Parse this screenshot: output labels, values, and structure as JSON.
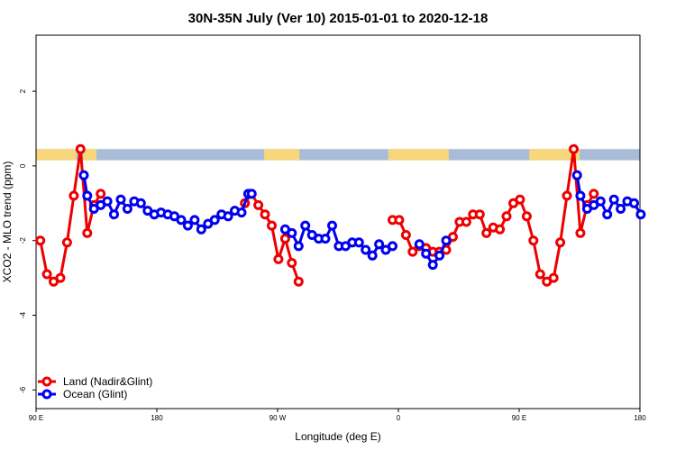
{
  "chart_data": {
    "type": "line",
    "title": "30N-35N July (Ver 10)   2015-01-01 to 2020-12-18",
    "xlabel": "Longitude (deg E)",
    "ylabel": "XCO2 - MLO trend (ppm)",
    "xlim": [
      90,
      450
    ],
    "ylim": [
      -6.5,
      3.5
    ],
    "x_ticks": [
      {
        "value": 90,
        "label": "90 E"
      },
      {
        "value": 162,
        "label": "180"
      },
      {
        "value": 234,
        "label": "90 W"
      },
      {
        "value": 306,
        "label": "0"
      },
      {
        "value": 378,
        "label": "90 E"
      },
      {
        "value": 450,
        "label": "180"
      }
    ],
    "y_ticks": [
      {
        "value": 2,
        "label": "2"
      },
      {
        "value": 0,
        "label": "0"
      },
      {
        "value": -2,
        "label": "-2"
      },
      {
        "value": -4,
        "label": "-4"
      },
      {
        "value": -6,
        "label": "-6"
      }
    ],
    "grid": false,
    "legend_position": "bottom-left",
    "surface_band": {
      "ymin": 0.15,
      "ymax": 0.45,
      "ocean_color": "#a8bcd8",
      "land_color": "#f8d77c",
      "land_segments": [
        [
          90,
          114
        ],
        [
          118,
          126
        ],
        [
          226,
          247
        ],
        [
          300,
          336
        ],
        [
          384,
          414
        ]
      ]
    },
    "series": [
      {
        "name": "Land (Nadir&Glint)",
        "color": "#ee0000",
        "segments": [
          [
            [
              92.5,
              -2.0
            ],
            [
              96.5,
              -2.9
            ],
            [
              100.5,
              -3.1
            ],
            [
              104.5,
              -3.0
            ],
            [
              108.5,
              -2.05
            ],
            [
              112.5,
              -0.8
            ],
            [
              116.5,
              0.45
            ],
            [
              120.5,
              -1.8
            ],
            [
              124.5,
              -1.05
            ],
            [
              128.5,
              -0.75
            ]
          ],
          [
            [
              214.5,
              -1.0
            ],
            [
              218.5,
              -0.75
            ],
            [
              222.5,
              -1.05
            ],
            [
              226.5,
              -1.3
            ],
            [
              230.5,
              -1.6
            ],
            [
              234.5,
              -2.5
            ],
            [
              238.5,
              -1.95
            ],
            [
              242.5,
              -2.6
            ],
            [
              246.5,
              -3.1
            ]
          ],
          [
            [
              302.5,
              -1.45
            ],
            [
              306.5,
              -1.45
            ],
            [
              310.5,
              -1.85
            ],
            [
              314.5,
              -2.3
            ],
            [
              318.5,
              -2.15
            ],
            [
              322.5,
              -2.2
            ],
            [
              326.5,
              -2.3
            ],
            [
              330.5,
              -2.3
            ],
            [
              334.5,
              -2.25
            ],
            [
              338.5,
              -1.9
            ],
            [
              342.5,
              -1.5
            ],
            [
              346.5,
              -1.5
            ],
            [
              350.5,
              -1.3
            ],
            [
              354.5,
              -1.3
            ],
            [
              358.5,
              -1.8
            ],
            [
              362.5,
              -1.65
            ],
            [
              366.5,
              -1.7
            ],
            [
              370.5,
              -1.35
            ],
            [
              374.5,
              -1.0
            ],
            [
              378.5,
              -0.9
            ],
            [
              382.5,
              -1.35
            ],
            [
              386.5,
              -2.0
            ],
            [
              390.5,
              -2.9
            ],
            [
              394.5,
              -3.1
            ],
            [
              398.5,
              -3.0
            ],
            [
              402.5,
              -2.05
            ],
            [
              406.5,
              -0.8
            ],
            [
              410.5,
              0.45
            ],
            [
              414.5,
              -1.8
            ],
            [
              418.5,
              -1.05
            ],
            [
              422.5,
              -0.75
            ]
          ]
        ]
      },
      {
        "name": "Ocean (Glint)",
        "color": "#0000ee",
        "segments": [
          [
            [
              118.5,
              -0.25
            ],
            [
              120.5,
              -0.8
            ],
            [
              124.5,
              -1.15
            ],
            [
              128.5,
              -1.05
            ],
            [
              132.5,
              -0.95
            ],
            [
              136.5,
              -1.3
            ],
            [
              140.5,
              -0.9
            ],
            [
              144.5,
              -1.15
            ],
            [
              148.5,
              -0.95
            ],
            [
              152.5,
              -1.0
            ],
            [
              156.5,
              -1.2
            ],
            [
              160.5,
              -1.3
            ],
            [
              164.5,
              -1.25
            ],
            [
              168.5,
              -1.3
            ],
            [
              172.5,
              -1.35
            ],
            [
              176.5,
              -1.45
            ],
            [
              180.5,
              -1.6
            ],
            [
              184.5,
              -1.45
            ],
            [
              188.5,
              -1.7
            ],
            [
              192.5,
              -1.55
            ],
            [
              196.5,
              -1.45
            ],
            [
              200.5,
              -1.3
            ],
            [
              204.5,
              -1.35
            ],
            [
              208.5,
              -1.2
            ],
            [
              212.5,
              -1.25
            ],
            [
              216.5,
              -0.75
            ],
            [
              218.5,
              -0.75
            ]
          ],
          [
            [
              238.5,
              -1.7
            ],
            [
              242.5,
              -1.8
            ],
            [
              246.5,
              -2.15
            ],
            [
              250.5,
              -1.6
            ],
            [
              254.5,
              -1.85
            ],
            [
              258.5,
              -1.95
            ],
            [
              262.5,
              -1.95
            ],
            [
              266.5,
              -1.6
            ],
            [
              270.5,
              -2.15
            ],
            [
              274.5,
              -2.15
            ],
            [
              278.5,
              -2.05
            ],
            [
              282.5,
              -2.05
            ],
            [
              286.5,
              -2.25
            ],
            [
              290.5,
              -2.4
            ],
            [
              294.5,
              -2.1
            ],
            [
              298.5,
              -2.25
            ],
            [
              302.5,
              -2.15
            ]
          ],
          [
            [
              318.5,
              -2.1
            ],
            [
              322.5,
              -2.35
            ],
            [
              326.5,
              -2.65
            ],
            [
              330.5,
              -2.4
            ],
            [
              334.5,
              -2.0
            ]
          ],
          [
            [
              412.5,
              -0.25
            ],
            [
              414.5,
              -0.8
            ],
            [
              418.5,
              -1.15
            ],
            [
              422.5,
              -1.05
            ],
            [
              426.5,
              -0.95
            ],
            [
              430.5,
              -1.3
            ],
            [
              434.5,
              -0.9
            ],
            [
              438.5,
              -1.15
            ],
            [
              442.5,
              -0.95
            ],
            [
              446.5,
              -1.0
            ],
            [
              450.5,
              -1.3
            ]
          ]
        ]
      }
    ]
  }
}
